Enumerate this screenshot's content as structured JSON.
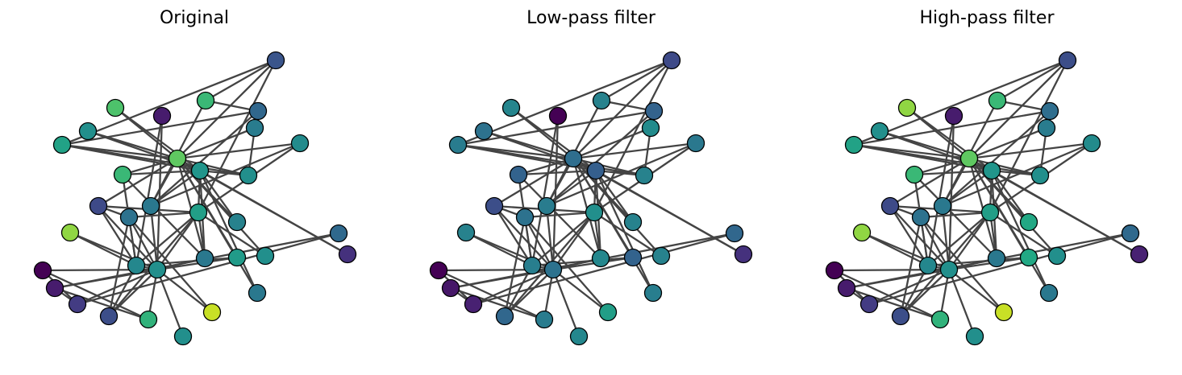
{
  "panels": [
    {
      "title": "Original"
    },
    {
      "title": "Low-pass filter"
    },
    {
      "title": "High-pass filter"
    }
  ],
  "graph": {
    "node_count": 34,
    "edges": [
      [
        0,
        1
      ],
      [
        0,
        2
      ],
      [
        0,
        3
      ],
      [
        0,
        4
      ],
      [
        0,
        5
      ],
      [
        0,
        6
      ],
      [
        0,
        7
      ],
      [
        0,
        8
      ],
      [
        0,
        10
      ],
      [
        0,
        11
      ],
      [
        0,
        12
      ],
      [
        0,
        13
      ],
      [
        0,
        17
      ],
      [
        0,
        19
      ],
      [
        0,
        21
      ],
      [
        0,
        31
      ],
      [
        1,
        2
      ],
      [
        1,
        3
      ],
      [
        1,
        7
      ],
      [
        1,
        13
      ],
      [
        1,
        17
      ],
      [
        1,
        19
      ],
      [
        1,
        21
      ],
      [
        1,
        30
      ],
      [
        2,
        3
      ],
      [
        2,
        7
      ],
      [
        2,
        8
      ],
      [
        2,
        9
      ],
      [
        2,
        13
      ],
      [
        2,
        27
      ],
      [
        2,
        28
      ],
      [
        2,
        32
      ],
      [
        3,
        7
      ],
      [
        3,
        12
      ],
      [
        3,
        13
      ],
      [
        4,
        6
      ],
      [
        4,
        10
      ],
      [
        5,
        6
      ],
      [
        5,
        10
      ],
      [
        5,
        16
      ],
      [
        6,
        16
      ],
      [
        8,
        30
      ],
      [
        8,
        32
      ],
      [
        8,
        33
      ],
      [
        9,
        33
      ],
      [
        13,
        33
      ],
      [
        14,
        32
      ],
      [
        14,
        33
      ],
      [
        15,
        32
      ],
      [
        15,
        33
      ],
      [
        18,
        32
      ],
      [
        18,
        33
      ],
      [
        19,
        33
      ],
      [
        20,
        32
      ],
      [
        20,
        33
      ],
      [
        22,
        32
      ],
      [
        22,
        33
      ],
      [
        23,
        25
      ],
      [
        23,
        27
      ],
      [
        23,
        29
      ],
      [
        23,
        32
      ],
      [
        23,
        33
      ],
      [
        24,
        25
      ],
      [
        24,
        27
      ],
      [
        24,
        31
      ],
      [
        25,
        31
      ],
      [
        26,
        29
      ],
      [
        26,
        33
      ],
      [
        27,
        33
      ],
      [
        28,
        31
      ],
      [
        28,
        33
      ],
      [
        29,
        32
      ],
      [
        29,
        33
      ],
      [
        30,
        32
      ],
      [
        30,
        33
      ],
      [
        31,
        32
      ],
      [
        31,
        33
      ],
      [
        32,
        33
      ]
    ]
  },
  "signals": {
    "original": [
      0.62,
      0.58,
      0.7,
      0.47,
      0.0,
      0.1,
      0.22,
      0.3,
      0.5,
      0.62,
      0.78,
      0.62,
      0.95,
      0.28,
      0.5,
      0.18,
      0.43,
      0.9,
      0.55,
      0.68,
      0.83,
      0.1,
      0.62,
      0.72,
      0.8,
      0.42,
      0.52,
      0.33,
      0.6,
      0.62,
      0.8,
      0.5,
      0.65,
      0.85
    ],
    "low_pass": [
      0.47,
      0.53,
      0.62,
      0.47,
      0.0,
      0.08,
      0.12,
      0.42,
      0.58,
      0.55,
      0.52,
      0.58,
      0.7,
      0.3,
      0.53,
      0.18,
      0.42,
      0.55,
      0.55,
      0.4,
      0.57,
      0.0,
      0.47,
      0.52,
      0.55,
      0.4,
      0.6,
      0.28,
      0.5,
      0.55,
      0.4,
      0.52,
      0.38,
      0.45
    ],
    "high_pass": [
      0.62,
      0.58,
      0.7,
      0.47,
      0.0,
      0.1,
      0.22,
      0.3,
      0.5,
      0.62,
      0.78,
      0.62,
      0.95,
      0.28,
      0.5,
      0.12,
      0.43,
      0.9,
      0.75,
      0.75,
      0.9,
      0.1,
      0.62,
      0.72,
      0.8,
      0.45,
      0.52,
      0.3,
      0.6,
      0.62,
      0.8,
      0.5,
      0.65,
      0.85
    ]
  }
}
